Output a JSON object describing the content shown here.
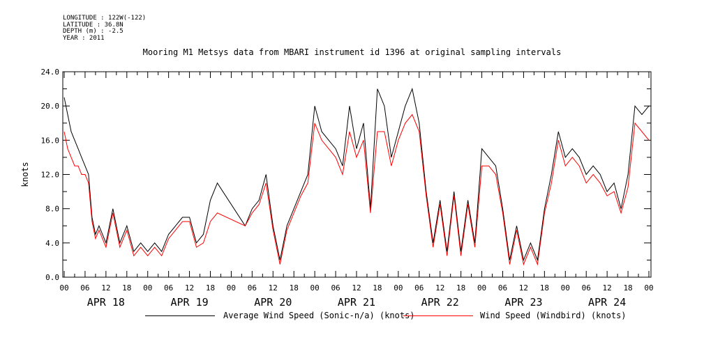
{
  "header": {
    "lines": [
      "LONGITUDE : 122W(-122)",
      "LATITUDE : 36.8N",
      "DEPTH (m) : -2.5",
      "YEAR : 2011"
    ]
  },
  "chart_data": {
    "type": "line",
    "title": "Mooring M1 Metsys data from MBARI instrument id 1396 at original sampling intervals",
    "ylabel": "knots",
    "xlabel": "",
    "ylim": [
      0.0,
      24.0
    ],
    "yticks": [
      "0.0",
      "4.0",
      "8.0",
      "12.0",
      "16.0",
      "20.0",
      "24.0"
    ],
    "xlim_hours": [
      0,
      168
    ],
    "hour_tick_labels": [
      "00",
      "06",
      "12",
      "18",
      "00",
      "06",
      "12",
      "18",
      "00",
      "06",
      "12",
      "18",
      "00",
      "06",
      "12",
      "18",
      "00",
      "06",
      "12",
      "18",
      "00",
      "06",
      "12",
      "18",
      "00",
      "06",
      "12",
      "18",
      "00"
    ],
    "day_labels": [
      "APR 18",
      "APR 19",
      "APR 20",
      "APR 21",
      "APR 22",
      "APR 23",
      "APR 24"
    ],
    "grid": false,
    "legend_position": "bottom",
    "series": [
      {
        "name": "Average Wind Speed (Sonic-n/a) (knots)",
        "color": "#000000",
        "x": [
          0,
          1,
          2,
          3,
          4,
          5,
          6,
          7,
          8,
          9,
          10,
          12,
          14,
          16,
          18,
          20,
          22,
          24,
          26,
          28,
          30,
          32,
          34,
          36,
          38,
          40,
          42,
          44,
          52,
          54,
          56,
          58,
          60,
          62,
          64,
          66,
          68,
          70,
          72,
          74,
          76,
          78,
          80,
          82,
          84,
          86,
          88,
          90,
          92,
          94,
          96,
          98,
          100,
          102,
          104,
          106,
          108,
          110,
          112,
          114,
          116,
          118,
          120,
          122,
          124,
          126,
          128,
          130,
          132,
          134,
          136,
          138,
          140,
          142,
          144,
          146,
          148,
          150,
          152,
          154,
          156,
          158,
          160,
          162,
          164,
          166,
          168
        ],
        "y": [
          21,
          19,
          17,
          16,
          15,
          14,
          13,
          12,
          7,
          5,
          6,
          4,
          8,
          4,
          6,
          3,
          4,
          3,
          4,
          3,
          5,
          6,
          7,
          7,
          4,
          5,
          9,
          11,
          6,
          8,
          9,
          12,
          6,
          2,
          6,
          8,
          10,
          12,
          20,
          17,
          16,
          15,
          13,
          20,
          15,
          18,
          8,
          22,
          20,
          14,
          17,
          20,
          22,
          18,
          10,
          4,
          9,
          3,
          10,
          3,
          9,
          4,
          15,
          14,
          13,
          8,
          2,
          6,
          2,
          4,
          2,
          8,
          12,
          17,
          14,
          15,
          14,
          12,
          13,
          12,
          10,
          11,
          8,
          12,
          20,
          19,
          20
        ]
      },
      {
        "name": "Wind Speed (Windbird) (knots)",
        "color": "#ff0000",
        "x": [
          0,
          1,
          2,
          3,
          4,
          5,
          6,
          7,
          8,
          9,
          10,
          12,
          14,
          16,
          18,
          20,
          22,
          24,
          26,
          28,
          30,
          32,
          34,
          36,
          38,
          40,
          42,
          44,
          52,
          54,
          56,
          58,
          60,
          62,
          64,
          66,
          68,
          70,
          72,
          74,
          76,
          78,
          80,
          82,
          84,
          86,
          88,
          90,
          92,
          94,
          96,
          98,
          100,
          102,
          104,
          106,
          108,
          110,
          112,
          114,
          116,
          118,
          120,
          122,
          124,
          126,
          128,
          130,
          132,
          134,
          136,
          138,
          140,
          142,
          144,
          146,
          148,
          150,
          152,
          154,
          156,
          158,
          160,
          162,
          164,
          166,
          168
        ],
        "y": [
          17,
          15,
          14,
          13,
          13,
          12,
          12,
          11,
          6.5,
          4.5,
          5.5,
          3.5,
          7.5,
          3.5,
          5.5,
          2.5,
          3.5,
          2.5,
          3.5,
          2.5,
          4.5,
          5.5,
          6.5,
          6.5,
          3.5,
          4,
          6.5,
          7.5,
          6,
          7.5,
          8.5,
          11,
          5.5,
          1.5,
          5.5,
          7.5,
          9.5,
          11,
          18,
          16,
          15,
          14,
          12,
          17,
          14,
          16,
          7.5,
          17,
          17,
          13,
          16,
          18,
          19,
          17,
          9.5,
          3.5,
          8.5,
          2.5,
          9.5,
          2.5,
          8.5,
          3.5,
          13,
          13,
          12,
          7.5,
          1.5,
          5.5,
          1.5,
          3.5,
          1.5,
          7.5,
          11,
          16,
          13,
          14,
          13,
          11,
          12,
          11,
          9.5,
          10,
          7.5,
          10.5,
          18,
          17,
          16
        ]
      }
    ]
  }
}
